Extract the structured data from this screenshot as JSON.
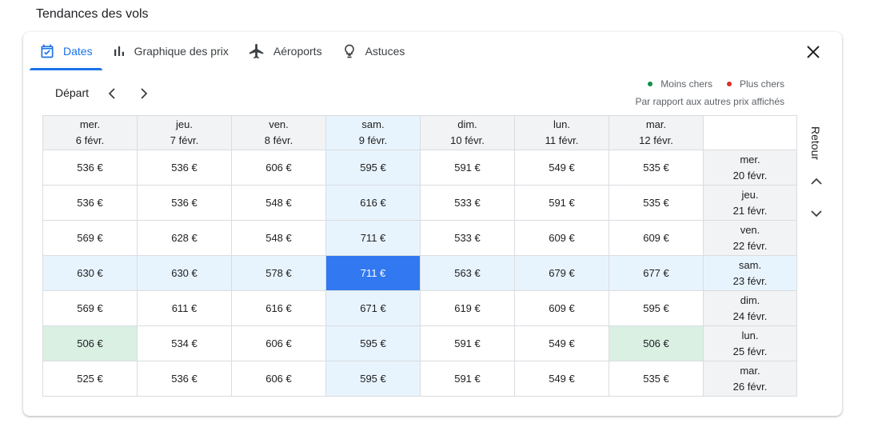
{
  "section_title": "Tendances des vols",
  "tabs": [
    {
      "label": "Dates",
      "icon": "calendar-icon",
      "active": true
    },
    {
      "label": "Graphique des prix",
      "icon": "bar-chart-icon",
      "active": false
    },
    {
      "label": "Aéroports",
      "icon": "airplane-icon",
      "active": false
    },
    {
      "label": "Astuces",
      "icon": "lightbulb-icon",
      "active": false
    }
  ],
  "depart_label": "Départ",
  "retour_label": "Retour",
  "legend": {
    "cheaper": "Moins chers",
    "pricier": "Plus chers",
    "note": "Par rapport aux autres prix affichés",
    "green": "#0d904f",
    "red": "#d93025"
  },
  "departure_dates": [
    {
      "day": "mer.",
      "date": "6 févr."
    },
    {
      "day": "jeu.",
      "date": "7 févr."
    },
    {
      "day": "ven.",
      "date": "8 févr."
    },
    {
      "day": "sam.",
      "date": "9 févr."
    },
    {
      "day": "dim.",
      "date": "10 févr."
    },
    {
      "day": "lun.",
      "date": "11 févr."
    },
    {
      "day": "mar.",
      "date": "12 févr."
    }
  ],
  "return_dates": [
    {
      "day": "mer.",
      "date": "20 févr."
    },
    {
      "day": "jeu.",
      "date": "21 févr."
    },
    {
      "day": "ven.",
      "date": "22 févr."
    },
    {
      "day": "sam.",
      "date": "23 févr."
    },
    {
      "day": "dim.",
      "date": "24 févr."
    },
    {
      "day": "lun.",
      "date": "25 févr."
    },
    {
      "day": "mar.",
      "date": "26 févr."
    }
  ],
  "prices": [
    [
      {
        "p": "536 €",
        "c": "g"
      },
      {
        "p": "536 €",
        "c": "g"
      },
      {
        "p": "606 €",
        "c": ""
      },
      {
        "p": "595 €",
        "c": ""
      },
      {
        "p": "591 €",
        "c": ""
      },
      {
        "p": "549 €",
        "c": ""
      },
      {
        "p": "535 €",
        "c": "g"
      }
    ],
    [
      {
        "p": "536 €",
        "c": "g"
      },
      {
        "p": "536 €",
        "c": "g"
      },
      {
        "p": "548 €",
        "c": ""
      },
      {
        "p": "616 €",
        "c": ""
      },
      {
        "p": "533 €",
        "c": "g"
      },
      {
        "p": "591 €",
        "c": ""
      },
      {
        "p": "535 €",
        "c": "g"
      }
    ],
    [
      {
        "p": "569 €",
        "c": ""
      },
      {
        "p": "628 €",
        "c": ""
      },
      {
        "p": "548 €",
        "c": ""
      },
      {
        "p": "711 €",
        "c": "r"
      },
      {
        "p": "533 €",
        "c": "g"
      },
      {
        "p": "609 €",
        "c": ""
      },
      {
        "p": "609 €",
        "c": ""
      }
    ],
    [
      {
        "p": "630 €",
        "c": ""
      },
      {
        "p": "630 €",
        "c": ""
      },
      {
        "p": "578 €",
        "c": ""
      },
      {
        "p": "711 €",
        "c": "sel"
      },
      {
        "p": "563 €",
        "c": ""
      },
      {
        "p": "679 €",
        "c": "r"
      },
      {
        "p": "677 €",
        "c": "r"
      }
    ],
    [
      {
        "p": "569 €",
        "c": ""
      },
      {
        "p": "611 €",
        "c": ""
      },
      {
        "p": "616 €",
        "c": ""
      },
      {
        "p": "671 €",
        "c": "r"
      },
      {
        "p": "619 €",
        "c": ""
      },
      {
        "p": "609 €",
        "c": ""
      },
      {
        "p": "595 €",
        "c": ""
      }
    ],
    [
      {
        "p": "506 €",
        "c": "gbest"
      },
      {
        "p": "534 €",
        "c": "g"
      },
      {
        "p": "606 €",
        "c": ""
      },
      {
        "p": "595 €",
        "c": ""
      },
      {
        "p": "591 €",
        "c": ""
      },
      {
        "p": "549 €",
        "c": ""
      },
      {
        "p": "506 €",
        "c": "gbest"
      }
    ],
    [
      {
        "p": "525 €",
        "c": "g"
      },
      {
        "p": "536 €",
        "c": "g"
      },
      {
        "p": "606 €",
        "c": ""
      },
      {
        "p": "595 €",
        "c": ""
      },
      {
        "p": "591 €",
        "c": ""
      },
      {
        "p": "549 €",
        "c": ""
      },
      {
        "p": "535 €",
        "c": "g"
      }
    ]
  ],
  "selected": {
    "row": 3,
    "col": 3
  }
}
